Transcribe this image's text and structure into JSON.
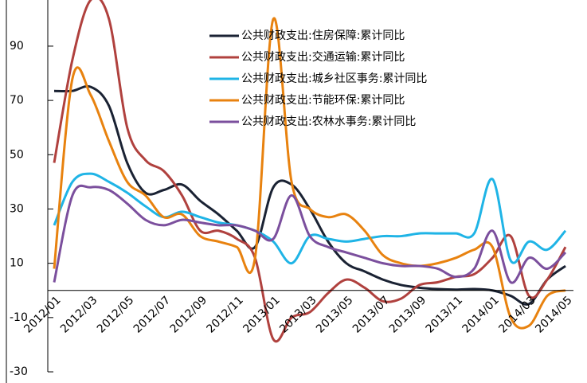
{
  "chart_data": {
    "type": "line",
    "categories": [
      "2012/01",
      null,
      "2012/03",
      null,
      "2012/05",
      null,
      "2012/07",
      null,
      "2012/09",
      null,
      "2012/11",
      null,
      "2013/01",
      null,
      "2013/03",
      null,
      "2013/05",
      null,
      "2013/07",
      null,
      "2013/09",
      null,
      "2013/11",
      null,
      "2014/01",
      null,
      "2014/03",
      null,
      "2014/05"
    ],
    "ylim": [
      -30,
      107
    ],
    "yticks": [
      -30,
      -10,
      10,
      30,
      50,
      70,
      90
    ],
    "legend": "top-right",
    "series": [
      {
        "name": "公共财政支出:住房保障:累计同比",
        "color": "#1a2233",
        "values": [
          73.5,
          73.5,
          75,
          68,
          47,
          36,
          37,
          39,
          33,
          28,
          22,
          16,
          38,
          39,
          30,
          18,
          10,
          7,
          4,
          2,
          1,
          0.5,
          0.3,
          0.5,
          0,
          -2,
          -5,
          4,
          9
        ]
      },
      {
        "name": "公共财政支出:交通运输:累计同比",
        "color": "#b0413e",
        "values": [
          47,
          85,
          107,
          100,
          60,
          48,
          44,
          35,
          22,
          22,
          19,
          12,
          -18,
          -10,
          -8,
          -1,
          4,
          1,
          -4,
          -3,
          2,
          3,
          5,
          6,
          12,
          20,
          -2,
          4,
          16
        ]
      },
      {
        "name": "公共财政支出:城乡社区事务:累计同比",
        "color": "#1fb4e6",
        "values": [
          24,
          40,
          43,
          40,
          36,
          31,
          27,
          29,
          27,
          25,
          24,
          22,
          18,
          10,
          20,
          19,
          18,
          19,
          20,
          20,
          21,
          21,
          21,
          21,
          41,
          11,
          18,
          15,
          22
        ]
      },
      {
        "name": "公共财政支出:节能环保:累计同比",
        "color": "#e8820f",
        "values": [
          8,
          78,
          72,
          55,
          40,
          35,
          27,
          28,
          20,
          18,
          16,
          12,
          100,
          40,
          30,
          27,
          28,
          22,
          13,
          10,
          9,
          10,
          12,
          15,
          16,
          -10,
          -13,
          -2,
          0
        ]
      },
      {
        "name": "公共财政支出:农林水事务:累计同比",
        "color": "#7b4f9d",
        "values": [
          3,
          35,
          38,
          37,
          32,
          26,
          24,
          26,
          25,
          24,
          24,
          22,
          19,
          35,
          20,
          16,
          14,
          12,
          10,
          9,
          9,
          8,
          5,
          8,
          22,
          3,
          12,
          8,
          14
        ]
      }
    ]
  }
}
